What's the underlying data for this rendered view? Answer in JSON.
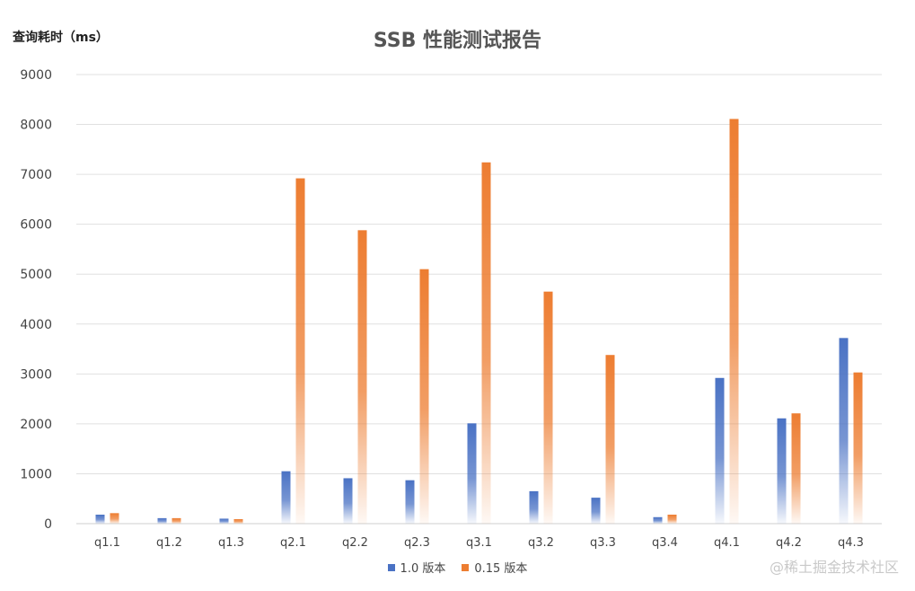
{
  "header": {
    "y_axis_unit": "查询耗时（ms）",
    "title": "SSB 性能测试报告"
  },
  "watermark": "@稀土掘金技术社区",
  "colors": {
    "series1": "#4a72c4",
    "series2": "#ed7d31",
    "grid": "#e0e0e0",
    "axis_text": "#444444"
  },
  "chart_data": {
    "type": "bar",
    "title": "SSB 性能测试报告",
    "ylabel": "查询耗时（ms）",
    "xlabel": "",
    "ylim": [
      0,
      9000
    ],
    "yticks": [
      0,
      1000,
      2000,
      3000,
      4000,
      5000,
      6000,
      7000,
      8000,
      9000
    ],
    "grid": true,
    "legend_position": "bottom",
    "categories": [
      "q1.1",
      "q1.2",
      "q1.3",
      "q2.1",
      "q2.2",
      "q2.3",
      "q3.1",
      "q3.2",
      "q3.3",
      "q3.4",
      "q4.1",
      "q4.2",
      "q4.3"
    ],
    "series": [
      {
        "name": "1.0 版本",
        "values": [
          180,
          110,
          100,
          1050,
          910,
          870,
          2010,
          650,
          520,
          130,
          2920,
          2110,
          3720
        ]
      },
      {
        "name": "0.15 版本",
        "values": [
          210,
          110,
          90,
          6920,
          5880,
          5100,
          7240,
          4650,
          3380,
          180,
          8110,
          2210,
          3030
        ]
      }
    ]
  }
}
